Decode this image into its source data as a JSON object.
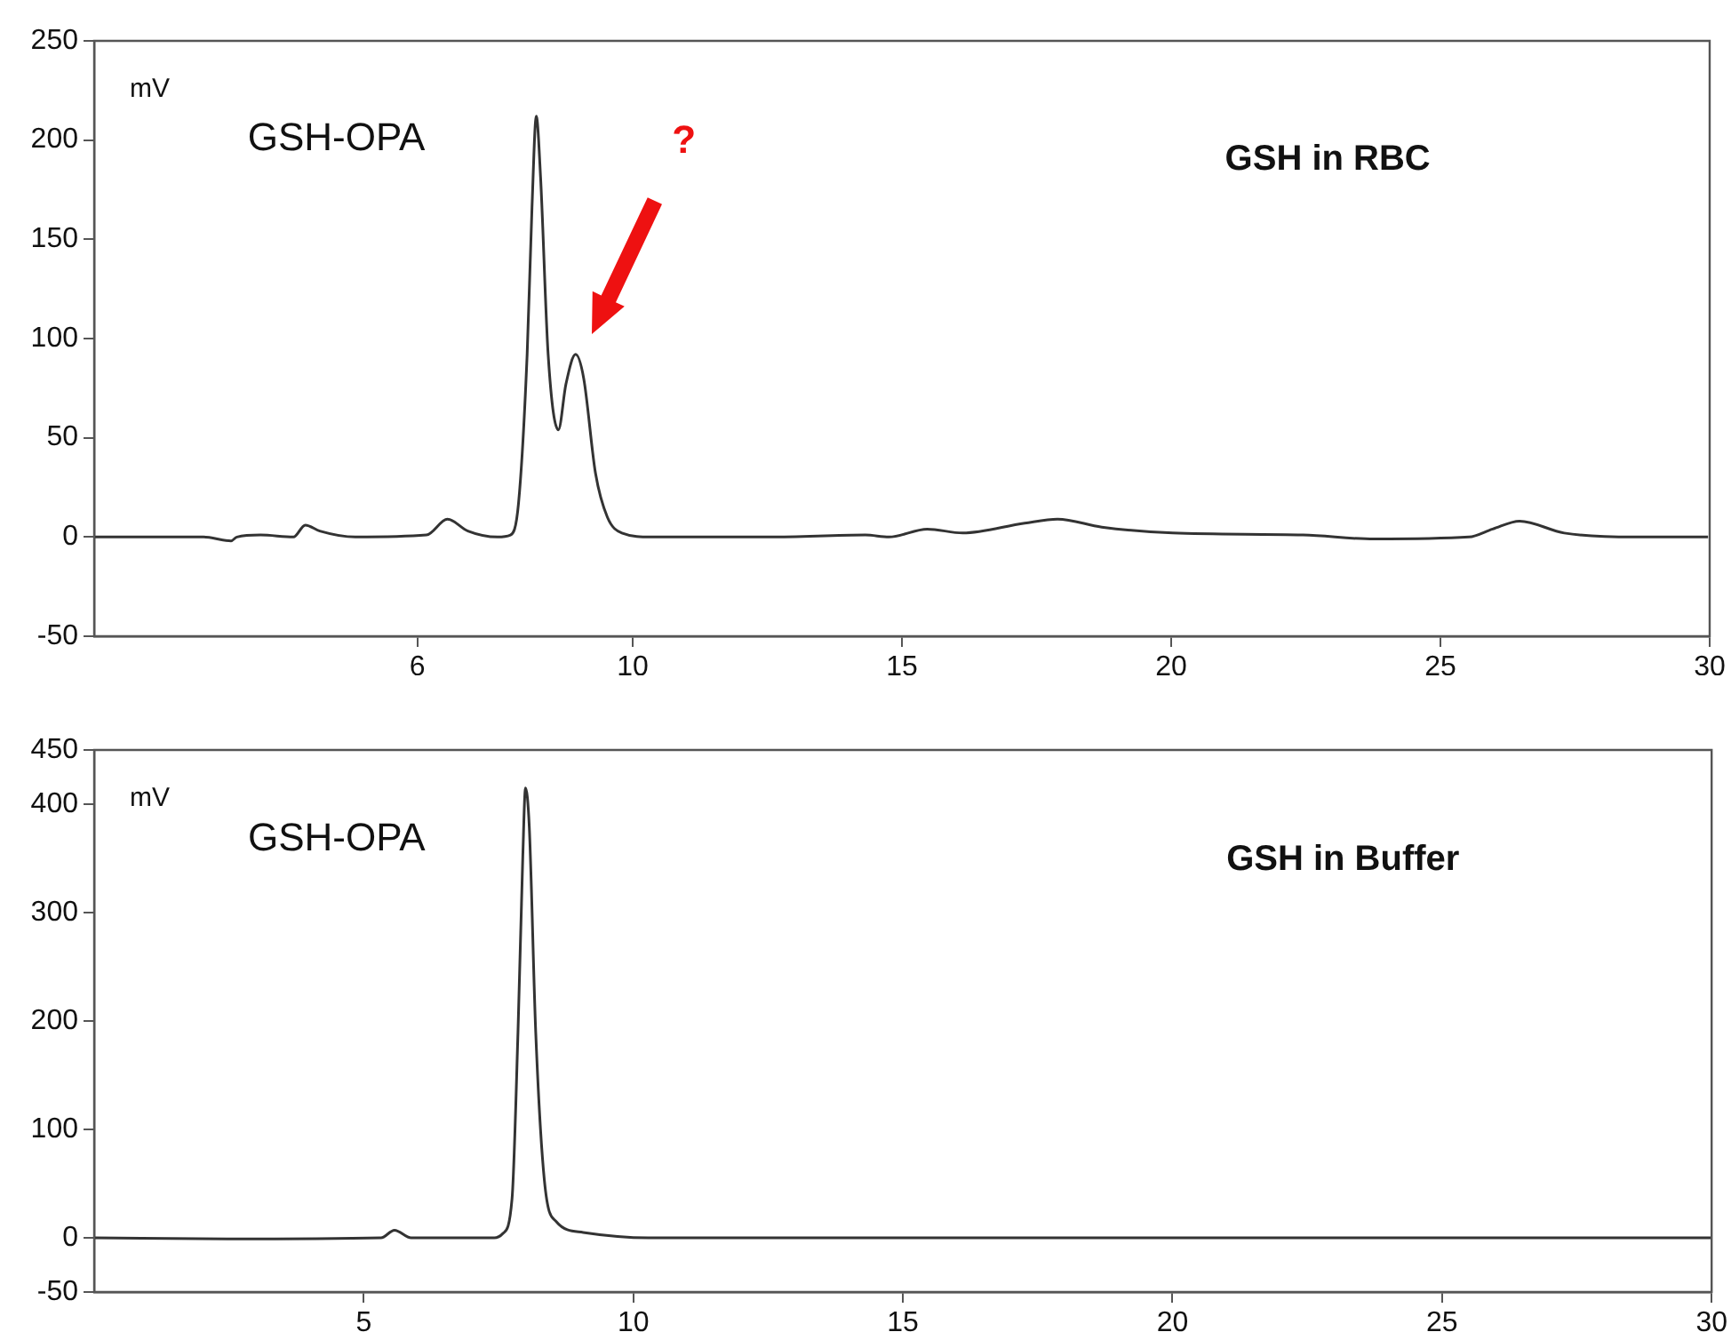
{
  "chart_data": [
    {
      "type": "line",
      "title": "GSH in RBC",
      "ylabel": "mV",
      "xlim": [
        0,
        30
      ],
      "ylim": [
        -50,
        250
      ],
      "xticks": [
        6,
        10,
        15,
        20,
        25,
        30
      ],
      "yticks": [
        -50,
        0,
        50,
        100,
        150,
        200,
        250
      ],
      "legend": false,
      "grid": false,
      "marker": "none",
      "annotations": [
        "GSH-OPA",
        "?"
      ],
      "series": [
        {
          "color": "#333333",
          "x": [
            0,
            2.03,
            2.54,
            2.65,
            3.09,
            3.7,
            3.92,
            4.19,
            4.85,
            6.17,
            6.56,
            6.94,
            7.49,
            7.73,
            7.88,
            8.04,
            8.13,
            8.21,
            8.29,
            8.43,
            8.62,
            8.76,
            8.94,
            9.09,
            9.31,
            9.53,
            9.8,
            10.35,
            11.45,
            12.55,
            14.32,
            14.76,
            15.47,
            16.13,
            17.28,
            17.89,
            18.71,
            20.03,
            22.45,
            23.77,
            25.53,
            25.97,
            26.47,
            27.3,
            28.6,
            29.97
          ],
          "values": [
            0,
            0,
            -2,
            0,
            1,
            0,
            6,
            3,
            0,
            1,
            9,
            3,
            0,
            1,
            17,
            92,
            166,
            212,
            181,
            92,
            54,
            77,
            92,
            80,
            32,
            10,
            2,
            0,
            0,
            0,
            1,
            0,
            4,
            2,
            7,
            9,
            5,
            2,
            1,
            -1,
            0,
            4,
            8,
            2,
            0,
            0
          ]
        }
      ]
    },
    {
      "type": "line",
      "title": "GSH in Buffer",
      "ylabel": "mV",
      "xlim": [
        0,
        30
      ],
      "ylim": [
        -50,
        450
      ],
      "xticks": [
        5,
        10,
        15,
        20,
        25,
        30
      ],
      "yticks": [
        -50,
        0,
        100,
        200,
        300,
        400,
        450
      ],
      "legend": false,
      "grid": false,
      "marker": "none",
      "annotations": [
        "GSH-OPA"
      ],
      "series": [
        {
          "color": "#333333",
          "x": [
            0,
            2.47,
            5.32,
            5.57,
            5.88,
            7.42,
            7.58,
            7.75,
            7.86,
            7.95,
            8.0,
            8.07,
            8.19,
            8.35,
            8.57,
            9.07,
            10.28,
            14.24,
            30
          ],
          "values": [
            0,
            -1,
            0,
            7,
            0,
            0,
            4,
            36,
            189,
            352,
            415,
            379,
            189,
            53,
            15,
            5,
            0,
            0,
            0
          ]
        }
      ]
    }
  ]
}
